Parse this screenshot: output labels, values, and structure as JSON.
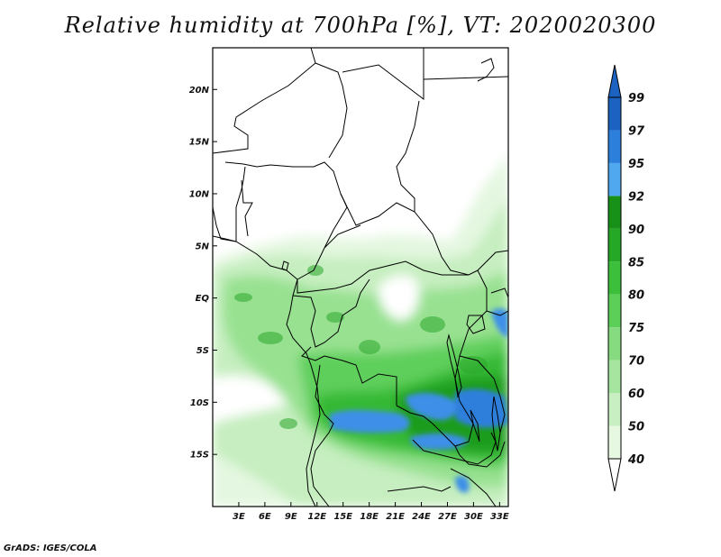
{
  "title": "Relative humidity at 700hPa [%], VT: 2020020300",
  "credit": "GrADS: IGES/COLA",
  "map": {
    "lon_range": [
      0,
      34
    ],
    "lat_range": [
      -20,
      24
    ],
    "lat_ticks": [
      {
        "value": 20,
        "label": "20N"
      },
      {
        "value": 15,
        "label": "15N"
      },
      {
        "value": 10,
        "label": "10N"
      },
      {
        "value": 5,
        "label": "5N"
      },
      {
        "value": 0,
        "label": "EQ"
      },
      {
        "value": -5,
        "label": "5S"
      },
      {
        "value": -10,
        "label": "10S"
      },
      {
        "value": -15,
        "label": "15S"
      }
    ],
    "lon_ticks": [
      {
        "value": 3,
        "label": "3E"
      },
      {
        "value": 6,
        "label": "6E"
      },
      {
        "value": 9,
        "label": "9E"
      },
      {
        "value": 12,
        "label": "12E"
      },
      {
        "value": 15,
        "label": "15E"
      },
      {
        "value": 18,
        "label": "18E"
      },
      {
        "value": 21,
        "label": "21E"
      },
      {
        "value": 24,
        "label": "24E"
      },
      {
        "value": 27,
        "label": "27E"
      },
      {
        "value": 30,
        "label": "30E"
      },
      {
        "value": 33,
        "label": "33E"
      }
    ]
  },
  "colorbar": {
    "levels": [
      {
        "label": "40",
        "color": "#ffffff"
      },
      {
        "label": "50",
        "color": "#e6f8e2"
      },
      {
        "label": "60",
        "color": "#c8efc2"
      },
      {
        "label": "70",
        "color": "#a6e5a0"
      },
      {
        "label": "75",
        "color": "#86db80"
      },
      {
        "label": "80",
        "color": "#5ccf59"
      },
      {
        "label": "85",
        "color": "#3cbf3a"
      },
      {
        "label": "90",
        "color": "#24a825"
      },
      {
        "label": "92",
        "color": "#179117"
      },
      {
        "label": "95",
        "color": "#50a8ee"
      },
      {
        "label": "97",
        "color": "#2d7fdc"
      },
      {
        "label": "99",
        "color": "#1c62c0"
      }
    ]
  }
}
